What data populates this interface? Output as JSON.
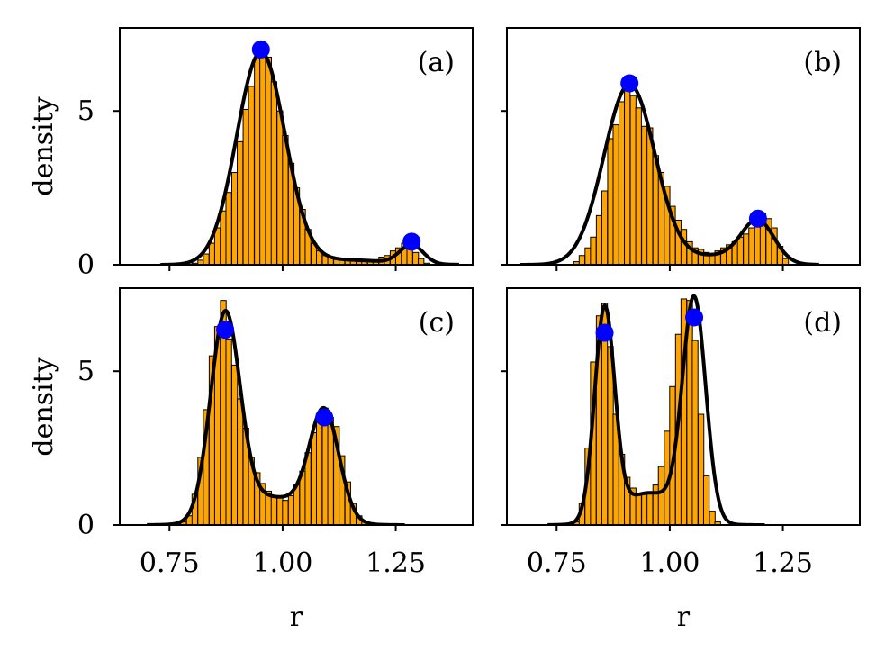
{
  "figure": {
    "xlabel": "r",
    "ylabel": "density"
  },
  "colors": {
    "bar_fill": "#FFA500",
    "bar_edge": "#000000",
    "curve": "#000000",
    "peak_marker": "#0000FF"
  },
  "chart_data": [
    {
      "type": "bar",
      "panel_label": "(a)",
      "xlabel": "",
      "ylabel": "density",
      "xlim": [
        0.64,
        1.42
      ],
      "ylim": [
        0,
        7.7
      ],
      "xticks": [
        0.75,
        1.0,
        1.25
      ],
      "xtick_labels": [
        "",
        "",
        ""
      ],
      "yticks": [
        0,
        5
      ],
      "ytick_labels": [
        "0",
        "5"
      ],
      "histogram": {
        "bin_width": 0.0125,
        "bin_centers": [
          0.806,
          0.819,
          0.831,
          0.844,
          0.856,
          0.869,
          0.881,
          0.894,
          0.906,
          0.919,
          0.931,
          0.944,
          0.956,
          0.969,
          0.981,
          0.994,
          1.006,
          1.019,
          1.031,
          1.044,
          1.056,
          1.069,
          1.081,
          1.094,
          1.106,
          1.119,
          1.131,
          1.144,
          1.156,
          1.169,
          1.181,
          1.194,
          1.206,
          1.219,
          1.231,
          1.244,
          1.256,
          1.269,
          1.281,
          1.294,
          1.306,
          1.319
        ],
        "values": [
          0.05,
          0.15,
          0.35,
          0.7,
          1.2,
          1.75,
          2.35,
          3.0,
          4.0,
          5.05,
          5.8,
          6.7,
          7.0,
          6.75,
          5.95,
          5.0,
          4.2,
          3.3,
          2.5,
          1.8,
          1.15,
          0.7,
          0.45,
          0.3,
          0.25,
          0.2,
          0.2,
          0.15,
          0.15,
          0.1,
          0.15,
          0.1,
          0.15,
          0.25,
          0.3,
          0.45,
          0.55,
          0.7,
          0.7,
          0.4,
          0.2,
          0.05
        ]
      },
      "curve": {
        "components": [
          {
            "weight": 0.925,
            "mean": 0.952,
            "sd": 0.0535
          },
          {
            "weight": 0.04,
            "mean": 1.285,
            "sd": 0.026
          },
          {
            "weight": 0.035,
            "mean": 1.14,
            "sd": 0.09
          }
        ],
        "x_range": [
          0.73,
          1.39
        ]
      },
      "peaks": [
        {
          "x": 0.952,
          "y": 7.0
        },
        {
          "x": 1.285,
          "y": 0.75
        }
      ]
    },
    {
      "type": "bar",
      "panel_label": "(b)",
      "xlabel": "",
      "ylabel": "",
      "xlim": [
        0.64,
        1.42
      ],
      "ylim": [
        0,
        7.7
      ],
      "xticks": [
        0.75,
        1.0,
        1.25
      ],
      "xtick_labels": [
        "",
        "",
        ""
      ],
      "yticks": [
        0,
        5
      ],
      "ytick_labels": [
        "",
        ""
      ],
      "histogram": {
        "bin_width": 0.0125,
        "bin_centers": [
          0.794,
          0.806,
          0.819,
          0.831,
          0.844,
          0.856,
          0.869,
          0.881,
          0.894,
          0.906,
          0.919,
          0.931,
          0.944,
          0.956,
          0.969,
          0.981,
          0.994,
          1.006,
          1.019,
          1.031,
          1.044,
          1.056,
          1.069,
          1.081,
          1.094,
          1.106,
          1.119,
          1.131,
          1.144,
          1.156,
          1.169,
          1.181,
          1.194,
          1.206,
          1.219,
          1.231,
          1.244,
          1.256
        ],
        "values": [
          0.1,
          0.3,
          0.55,
          0.9,
          1.6,
          2.4,
          4.1,
          4.55,
          5.3,
          5.65,
          5.5,
          5.1,
          4.5,
          4.45,
          3.55,
          3.0,
          2.55,
          1.9,
          1.45,
          1.15,
          0.75,
          0.55,
          0.5,
          0.4,
          0.35,
          0.45,
          0.55,
          0.65,
          0.75,
          0.9,
          1.0,
          1.2,
          1.4,
          1.65,
          1.5,
          1.2,
          0.6,
          0.2
        ]
      },
      "curve": {
        "components": [
          {
            "weight": 0.83,
            "mean": 0.911,
            "sd": 0.0565
          },
          {
            "weight": 0.12,
            "mean": 1.195,
            "sd": 0.036
          },
          {
            "weight": 0.05,
            "mean": 1.11,
            "sd": 0.07
          }
        ],
        "x_range": [
          0.67,
          1.33
        ]
      },
      "peaks": [
        {
          "x": 0.911,
          "y": 5.9
        },
        {
          "x": 1.195,
          "y": 1.5
        }
      ]
    },
    {
      "type": "bar",
      "panel_label": "(c)",
      "xlabel": "r",
      "ylabel": "density",
      "xlim": [
        0.64,
        1.42
      ],
      "ylim": [
        0,
        7.7
      ],
      "xticks": [
        0.75,
        1.0,
        1.25
      ],
      "xtick_labels": [
        "0.75",
        "1.00",
        "1.25"
      ],
      "yticks": [
        0,
        5
      ],
      "ytick_labels": [
        "0",
        "5"
      ],
      "histogram": {
        "bin_width": 0.0125,
        "bin_centers": [
          0.781,
          0.794,
          0.806,
          0.819,
          0.831,
          0.844,
          0.856,
          0.869,
          0.881,
          0.894,
          0.906,
          0.919,
          0.931,
          0.944,
          0.956,
          0.969,
          0.981,
          0.994,
          1.006,
          1.019,
          1.031,
          1.044,
          1.056,
          1.069,
          1.081,
          1.094,
          1.106,
          1.119,
          1.131,
          1.144,
          1.156,
          1.169,
          1.181
        ],
        "values": [
          0.1,
          0.3,
          1.0,
          2.2,
          3.75,
          5.5,
          6.45,
          7.3,
          6.05,
          5.2,
          4.1,
          3.15,
          2.2,
          1.7,
          1.35,
          1.1,
          0.9,
          0.95,
          0.8,
          0.95,
          1.3,
          1.75,
          2.35,
          3.0,
          3.55,
          3.8,
          3.5,
          3.2,
          2.25,
          1.4,
          0.7,
          0.3,
          0.1
        ]
      },
      "curve": {
        "components": [
          {
            "weight": 0.535,
            "mean": 0.873,
            "sd": 0.0325
          },
          {
            "weight": 0.285,
            "mean": 1.092,
            "sd": 0.0325
          },
          {
            "weight": 0.18,
            "mean": 0.975,
            "sd": 0.08
          }
        ],
        "x_range": [
          0.7,
          1.27
        ]
      },
      "peaks": [
        {
          "x": 0.873,
          "y": 6.35
        },
        {
          "x": 1.092,
          "y": 3.5
        }
      ]
    },
    {
      "type": "bar",
      "panel_label": "(d)",
      "xlabel": "r",
      "ylabel": "",
      "xlim": [
        0.64,
        1.42
      ],
      "ylim": [
        0,
        7.7
      ],
      "xticks": [
        0.75,
        1.0,
        1.25
      ],
      "xtick_labels": [
        "0.75",
        "1.00",
        "1.25"
      ],
      "yticks": [
        0,
        5
      ],
      "ytick_labels": [
        "",
        ""
      ],
      "histogram": {
        "bin_width": 0.0125,
        "bin_centers": [
          0.794,
          0.806,
          0.819,
          0.831,
          0.844,
          0.856,
          0.869,
          0.881,
          0.894,
          0.906,
          0.919,
          0.931,
          0.944,
          0.956,
          0.969,
          0.981,
          0.994,
          1.006,
          1.019,
          1.031,
          1.044,
          1.056,
          1.069,
          1.081,
          1.094,
          1.106
        ],
        "values": [
          0.1,
          0.7,
          2.5,
          5.3,
          6.8,
          7.2,
          5.8,
          3.6,
          2.3,
          1.55,
          1.2,
          1.0,
          1.0,
          1.05,
          1.3,
          1.9,
          3.05,
          4.5,
          6.2,
          7.35,
          7.3,
          6.0,
          3.6,
          1.6,
          0.45,
          0.1
        ]
      },
      "curve": {
        "components": [
          {
            "weight": 0.375,
            "mean": 0.856,
            "sd": 0.022
          },
          {
            "weight": 0.455,
            "mean": 1.054,
            "sd": 0.0255
          },
          {
            "weight": 0.17,
            "mean": 0.955,
            "sd": 0.065
          }
        ],
        "x_range": [
          0.73,
          1.21
        ]
      },
      "peaks": [
        {
          "x": 0.856,
          "y": 6.25
        },
        {
          "x": 1.054,
          "y": 6.75
        }
      ]
    }
  ]
}
